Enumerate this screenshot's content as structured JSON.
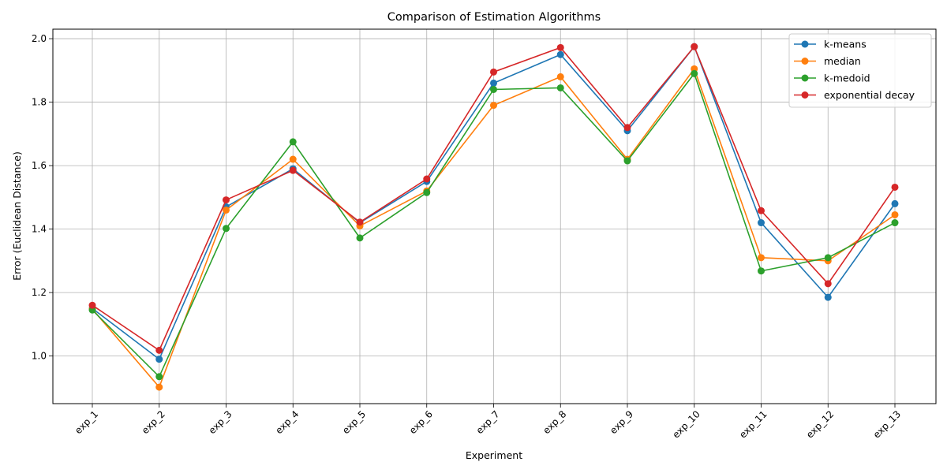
{
  "chart_data": {
    "type": "line",
    "title": "Comparison of Estimation Algorithms",
    "xlabel": "Experiment",
    "ylabel": "Error (Euclidean Distance)",
    "categories": [
      "exp_1",
      "exp_2",
      "exp_3",
      "exp_4",
      "exp_5",
      "exp_6",
      "exp_7",
      "exp_8",
      "exp_9",
      "exp_10",
      "exp_11",
      "exp_12",
      "exp_13"
    ],
    "ylim": [
      0.85,
      2.03
    ],
    "yticks": [
      1.0,
      1.2,
      1.4,
      1.6,
      1.8,
      2.0
    ],
    "ytick_labels": [
      "1.0",
      "1.2",
      "1.4",
      "1.6",
      "1.8",
      "2.0"
    ],
    "grid": true,
    "legend_position": "top-right",
    "series": [
      {
        "name": "k-means",
        "color": "#1f77b4",
        "values": [
          1.15,
          0.99,
          1.47,
          1.59,
          1.42,
          1.55,
          1.86,
          1.95,
          1.71,
          1.975,
          1.42,
          1.185,
          1.48
        ]
      },
      {
        "name": "median",
        "color": "#ff7f0e",
        "values": [
          1.148,
          0.902,
          1.46,
          1.62,
          1.41,
          1.52,
          1.79,
          1.88,
          1.62,
          1.905,
          1.31,
          1.3,
          1.445
        ]
      },
      {
        "name": "k-medoid",
        "color": "#2ca02c",
        "values": [
          1.145,
          0.935,
          1.402,
          1.675,
          1.372,
          1.515,
          1.84,
          1.845,
          1.615,
          1.89,
          1.268,
          1.31,
          1.42
        ]
      },
      {
        "name": "exponential decay",
        "color": "#d62728",
        "values": [
          1.16,
          1.018,
          1.492,
          1.585,
          1.422,
          1.558,
          1.895,
          1.972,
          1.72,
          1.975,
          1.458,
          1.228,
          1.532
        ]
      }
    ]
  }
}
